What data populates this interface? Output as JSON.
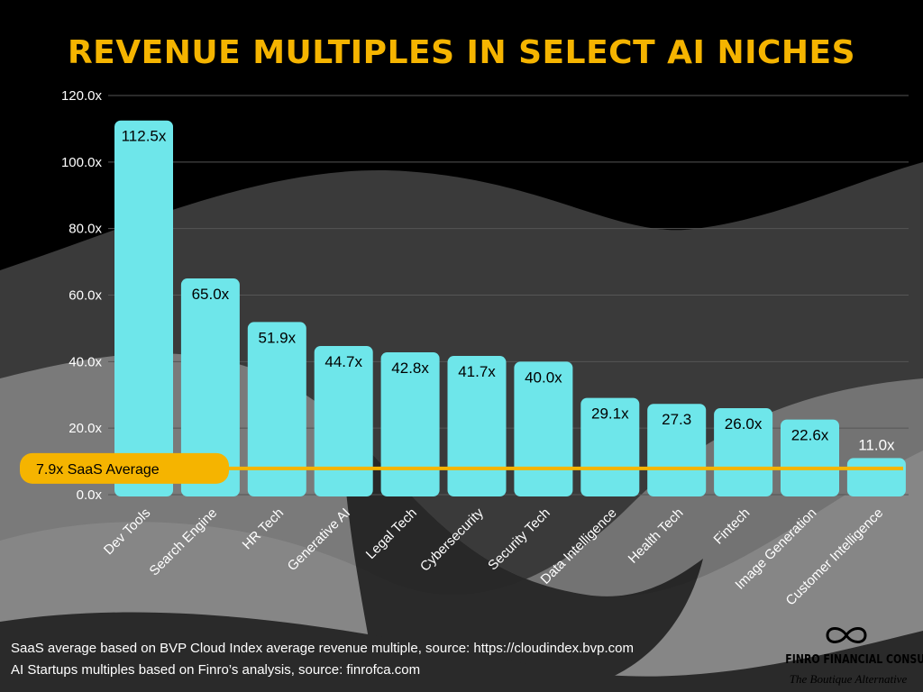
{
  "title": "REVENUE MULTIPLES IN SELECT AI NICHES",
  "footnotes": [
    "SaaS average based on BVP Cloud Index average revenue multiple, source: https://cloudindex.bvp.com",
    "AI Startups multiples based on Finro’s analysis, source: finrofca.com"
  ],
  "brand": {
    "name": "FINRO FINANCIAL CONSULTING",
    "tagline": "The Boutique Alternative",
    "logo_icon": "infinity-icon"
  },
  "colors": {
    "title": "#f5b400",
    "bar": "#6ee6ea",
    "average_line": "#f5b400",
    "background": "#000000",
    "text": "#ffffff"
  },
  "chart_data": {
    "type": "bar",
    "title": "REVENUE MULTIPLES IN SELECT AI NICHES",
    "categories": [
      "Dev Tools",
      "Search Engine",
      "HR Tech",
      "Generative AI",
      "Legal Tech",
      "Cybersecurity",
      "Security Tech",
      "Data Intelligence",
      "Health Tech",
      "Fintech",
      "Image Generation",
      "Customer Intelligence"
    ],
    "values": [
      112.5,
      65.0,
      51.9,
      44.7,
      42.8,
      41.7,
      40.0,
      29.1,
      27.3,
      26.0,
      22.6,
      11.0
    ],
    "value_labels": [
      "112.5x",
      "65.0x",
      "51.9x",
      "44.7x",
      "42.8x",
      "41.7x",
      "40.0x",
      "29.1x",
      "27.3",
      "26.0x",
      "22.6x",
      "11.0x"
    ],
    "y_ticks": [
      0,
      20,
      40,
      60,
      80,
      100,
      120
    ],
    "y_tick_labels": [
      "0.0x",
      "20.0x",
      "40.0x",
      "60.0x",
      "80.0x",
      "100.0x",
      "120.0x"
    ],
    "ylim": [
      0,
      120
    ],
    "grid": true,
    "xlabel": "",
    "ylabel": "",
    "reference_line": {
      "value": 7.9,
      "label": "7.9x SaaS Average"
    }
  }
}
